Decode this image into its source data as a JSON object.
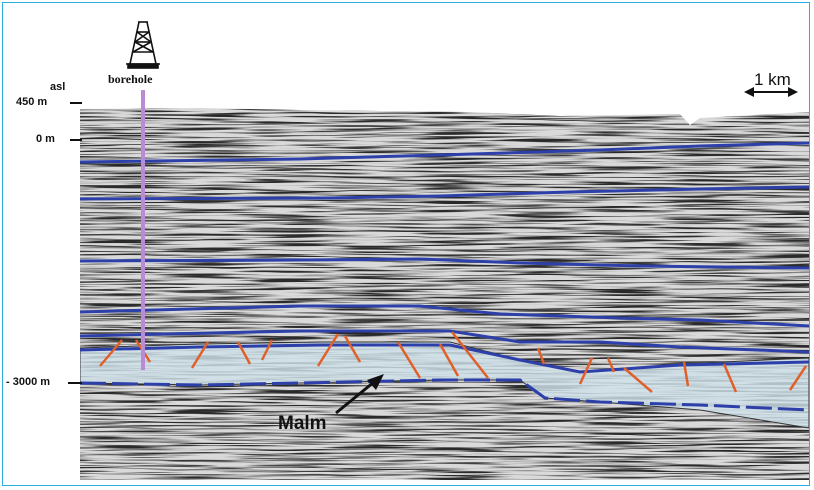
{
  "labels": {
    "borehole": "borehole",
    "asl": "asl",
    "depth_450": "450 m",
    "depth_0": "0 m",
    "depth_3000": "- 3000 m",
    "malm": "Malm",
    "scale": "1 km"
  },
  "colors": {
    "frame": "#2ab0e0",
    "horizon": "#2d3fa8",
    "borehole": "#b98ad6",
    "fault": "#e0602a",
    "malm_fill": "#cfe0ea"
  },
  "icons": {
    "rig": "drilling-rig-icon",
    "scale": "double-arrow-icon",
    "pointer": "arrow-icon"
  }
}
